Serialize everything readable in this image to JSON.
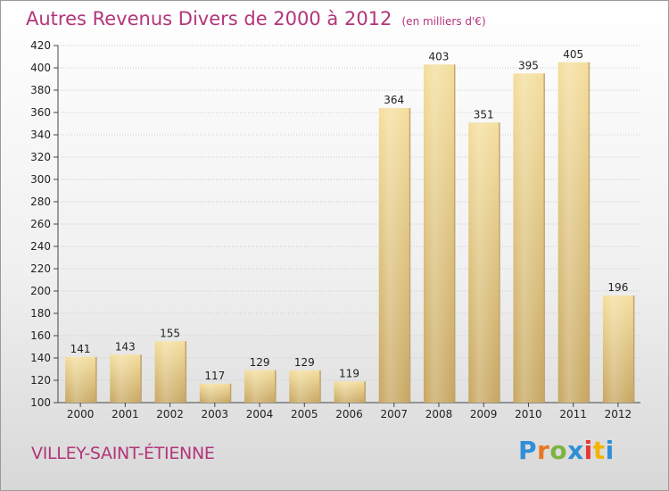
{
  "title": "Autres Revenus Divers de 2000 à 2012",
  "unit_note": "(en milliers d'€)",
  "commune": "VILLEY-SAINT-ÉTIENNE",
  "logo": {
    "text": "Proxiti",
    "letter_colors": [
      "#2f8fd8",
      "#e87722",
      "#7cb342",
      "#2f8fd8",
      "#e53935",
      "#f4b400",
      "#2f8fd8"
    ]
  },
  "colors": {
    "bar_light": "#f3dc9a",
    "bar_dark": "#c9a861",
    "title": "#b2357a",
    "grid": "#c8c8c8",
    "text": "#222222"
  },
  "chart_data": {
    "type": "bar",
    "categories": [
      "2000",
      "2001",
      "2002",
      "2003",
      "2004",
      "2005",
      "2006",
      "2007",
      "2008",
      "2009",
      "2010",
      "2011",
      "2012"
    ],
    "values": [
      141,
      143,
      155,
      117,
      129,
      129,
      119,
      364,
      403,
      351,
      395,
      405,
      196
    ],
    "ylim": [
      100,
      420
    ],
    "yticks": [
      100,
      120,
      140,
      160,
      180,
      200,
      220,
      240,
      260,
      280,
      300,
      320,
      340,
      360,
      380,
      400,
      420
    ],
    "grid": true
  }
}
